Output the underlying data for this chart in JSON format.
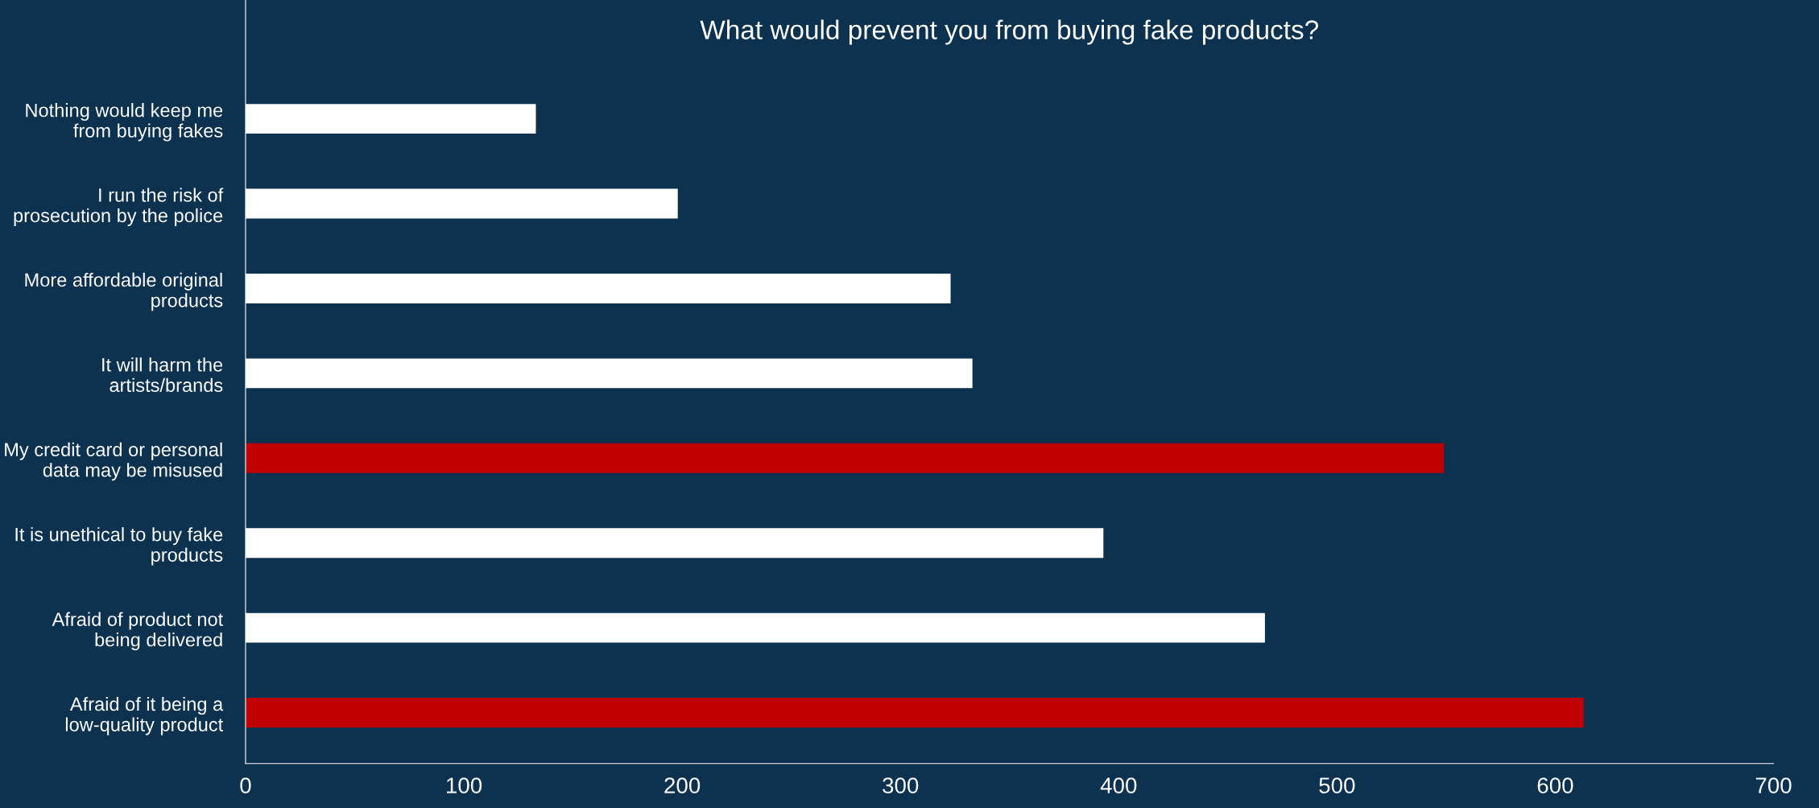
{
  "chart_data": {
    "type": "bar",
    "orientation": "horizontal",
    "title": "What would prevent you from buying fake products?",
    "categories": [
      "Nothing would keep me from buying fakes",
      "I run the risk of prosecution by the police",
      "More affordable original products",
      "It will harm the artists/brands",
      "My credit card or personal data may be misused",
      "It is unethical to buy fake products",
      "Afraid of product not being delivered",
      "Afraid of it being a low-quality product"
    ],
    "values": [
      133,
      198,
      323,
      333,
      549,
      393,
      467,
      613
    ],
    "colors": [
      "#ffffff",
      "#ffffff",
      "#ffffff",
      "#ffffff",
      "#c00000",
      "#ffffff",
      "#ffffff",
      "#c00000"
    ],
    "xlim": [
      0,
      700
    ],
    "xticks": [
      0,
      100,
      200,
      300,
      400,
      500,
      600,
      700
    ],
    "grid": false,
    "legend": false
  }
}
